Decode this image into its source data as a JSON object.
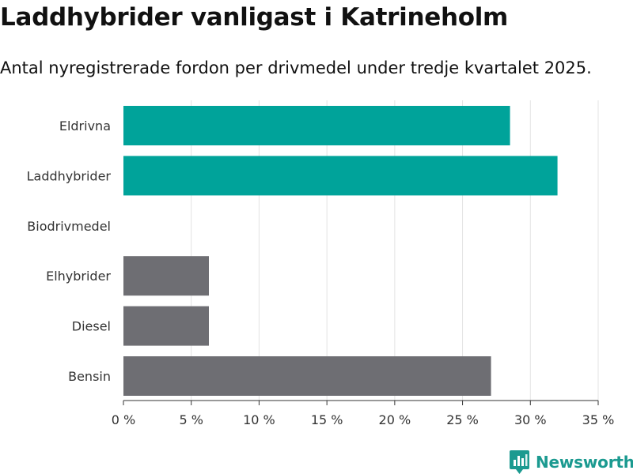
{
  "header": {
    "title": "Laddhybrider vanligast i Katrineholm",
    "subtitle": "Antal nyregistrerade fordon per drivmedel under tredje kvartalet 2025."
  },
  "brand": {
    "name": "Newsworthy",
    "icon": "newsworthy-logo-icon",
    "color": "#1b9a90"
  },
  "chart_data": {
    "type": "bar",
    "orientation": "horizontal",
    "title": "Laddhybrider vanligast i Katrineholm",
    "subtitle": "Antal nyregistrerade fordon per drivmedel under tredje kvartalet 2025.",
    "xlabel": "",
    "ylabel": "",
    "categories": [
      "Eldrivna",
      "Laddhybrider",
      "Biodrivmedel",
      "Elhybrider",
      "Diesel",
      "Bensin"
    ],
    "values": [
      28.5,
      32.0,
      0,
      6.3,
      6.3,
      27.1
    ],
    "unit": "%",
    "colors": [
      "#00a39a",
      "#00a39a",
      "#00a39a",
      "#6e6e73",
      "#6e6e73",
      "#6e6e73"
    ],
    "xlim": [
      0,
      35
    ],
    "xticks": [
      0,
      5,
      10,
      15,
      20,
      25,
      30,
      35
    ],
    "xtick_labels": [
      "0 %",
      "5 %",
      "10 %",
      "15 %",
      "20 %",
      "25 %",
      "30 %",
      "35 %"
    ],
    "grid": "vertical",
    "legend": "none"
  }
}
